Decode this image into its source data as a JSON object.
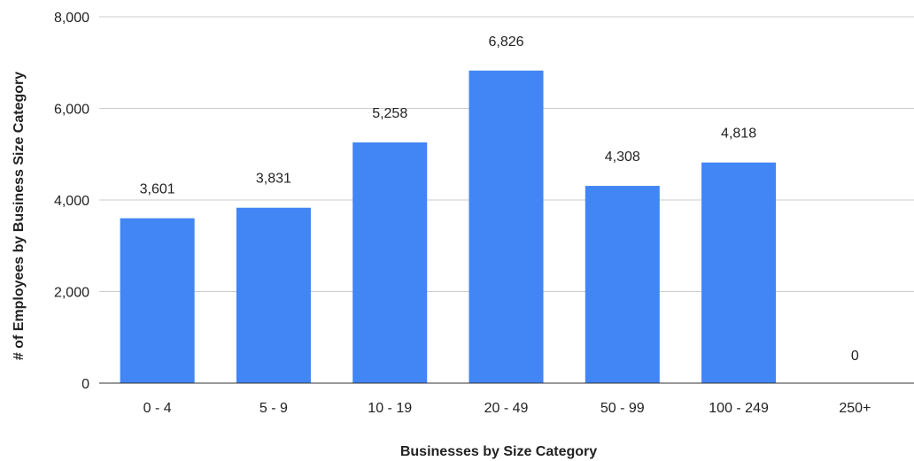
{
  "chart_data": {
    "type": "bar",
    "title": "",
    "xlabel": "Businesses by Size Category",
    "ylabel": "# of Employees by Business Size Category",
    "categories": [
      "0 - 4",
      "5 - 9",
      "10 - 19",
      "20 - 49",
      "50 - 99",
      "100 - 249",
      "250+"
    ],
    "values": [
      3601,
      3831,
      5258,
      6826,
      4308,
      4818,
      0
    ],
    "data_labels": [
      "3,601",
      "3,831",
      "5,258",
      "6,826",
      "4,308",
      "4,818",
      "0"
    ],
    "ylim": [
      0,
      8000
    ],
    "yticks": [
      0,
      2000,
      4000,
      6000,
      8000
    ],
    "ytick_labels": [
      "0",
      "2,000",
      "4,000",
      "6,000",
      "8,000"
    ],
    "grid": true,
    "legend": "none",
    "colors": {
      "bar": "#4285f4",
      "grid": "#cccccc",
      "axis": "#333333"
    }
  }
}
